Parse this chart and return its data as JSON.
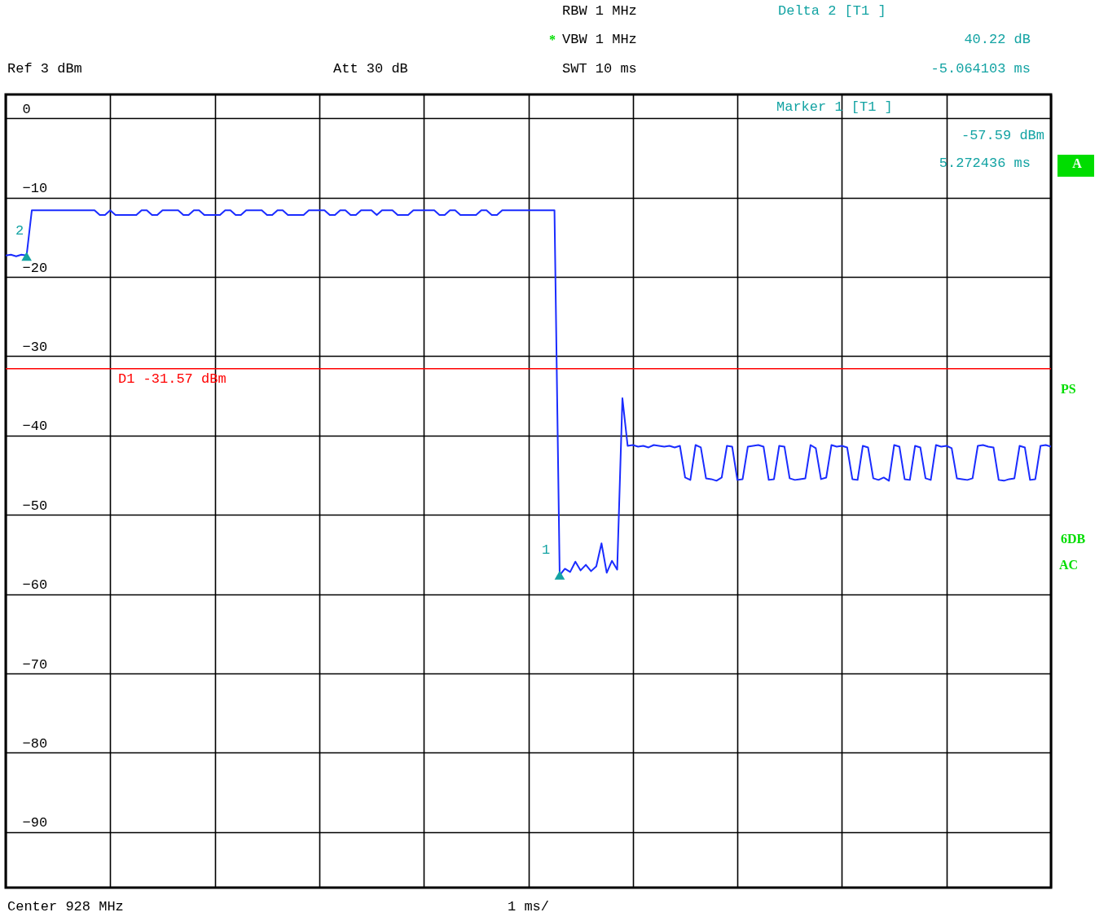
{
  "chart_data": {
    "type": "line",
    "categories": [
      null,
      null,
      null,
      null,
      null,
      null,
      null,
      null,
      null,
      null,
      null,
      null,
      null,
      null,
      null,
      null,
      null,
      null,
      null,
      null,
      null,
      null,
      null,
      null,
      null,
      null,
      null,
      null,
      null,
      null,
      null,
      null,
      null,
      null,
      null,
      null,
      null,
      null,
      null,
      null,
      null,
      null,
      null,
      null,
      null,
      null,
      null,
      null,
      null,
      null,
      null,
      null,
      null,
      null,
      null,
      null,
      null,
      null,
      null,
      null,
      null,
      null,
      null,
      null,
      null,
      null,
      null,
      null,
      null,
      null,
      null,
      null,
      null,
      null,
      null,
      null,
      null,
      null,
      null,
      null,
      null,
      null,
      null,
      null,
      null,
      null,
      null,
      null,
      null,
      null,
      null,
      null,
      null,
      null,
      null,
      null,
      null,
      null,
      null,
      null,
      null,
      null,
      null,
      null,
      null,
      null,
      null,
      null,
      null,
      null,
      null,
      null,
      null,
      null,
      null,
      null,
      null,
      null,
      null,
      null,
      null,
      null,
      null,
      null,
      null,
      null,
      null,
      null,
      null,
      null,
      null,
      null,
      null,
      null,
      null,
      null,
      null,
      null,
      null,
      null,
      null,
      null,
      null,
      null,
      null,
      null,
      null,
      null,
      null,
      null,
      null,
      null,
      null,
      null,
      null,
      null,
      null,
      null,
      null,
      null,
      null,
      null,
      null,
      null,
      null,
      null,
      null,
      null,
      null,
      null,
      null,
      null,
      null,
      null,
      null,
      null,
      null,
      null,
      null,
      null,
      null,
      null,
      null,
      null,
      null,
      null,
      null,
      null,
      null,
      null,
      null,
      null,
      null,
      null,
      null,
      null,
      null,
      null,
      null,
      null,
      null
    ],
    "series": [
      {
        "color": "#1a2cff",
        "values": [
          -17.3,
          -17.2,
          -17.4,
          -17.2,
          -17.3,
          -11.6,
          -11.6,
          -11.6,
          -11.6,
          -11.6,
          -11.6,
          -11.6,
          -11.6,
          -11.6,
          -11.6,
          -11.6,
          -11.6,
          -11.6,
          -12.2,
          -12.2,
          -11.6,
          -12.2,
          -12.2,
          -12.2,
          -12.2,
          -12.2,
          -11.6,
          -11.6,
          -12.2,
          -12.2,
          -11.6,
          -11.6,
          -11.6,
          -11.6,
          -12.2,
          -12.2,
          -11.6,
          -11.6,
          -12.2,
          -12.2,
          -12.2,
          -12.2,
          -11.6,
          -11.6,
          -12.2,
          -12.2,
          -11.6,
          -11.6,
          -11.6,
          -11.6,
          -12.2,
          -12.2,
          -11.6,
          -11.6,
          -12.2,
          -12.2,
          -12.2,
          -12.2,
          -11.6,
          -11.6,
          -11.6,
          -11.6,
          -12.2,
          -12.2,
          -11.6,
          -11.6,
          -12.2,
          -12.2,
          -11.6,
          -11.6,
          -11.6,
          -12.2,
          -11.6,
          -11.6,
          -11.6,
          -12.2,
          -12.2,
          -12.2,
          -11.6,
          -11.6,
          -11.6,
          -11.6,
          -11.6,
          -12.2,
          -12.2,
          -11.6,
          -11.6,
          -12.2,
          -12.2,
          -12.2,
          -12.2,
          -11.6,
          -11.6,
          -12.2,
          -12.2,
          -11.6,
          -11.6,
          -11.6,
          -11.6,
          -11.6,
          -11.6,
          -11.6,
          -11.6,
          -11.6,
          -11.6,
          -11.6,
          -57.6,
          -56.8,
          -57.2,
          -55.9,
          -57.0,
          -56.3,
          -57.1,
          -56.5,
          -53.6,
          -57.3,
          -55.8,
          -56.9,
          -35.3,
          -41.3,
          -41.2,
          -41.4,
          -41.3,
          -41.5,
          -41.2,
          -41.3,
          -41.4,
          -41.3,
          -41.5,
          -41.3,
          -45.3,
          -45.6,
          -41.2,
          -41.5,
          -45.4,
          -45.5,
          -45.7,
          -45.3,
          -41.3,
          -41.4,
          -45.6,
          -45.5,
          -41.4,
          -41.3,
          -41.2,
          -41.4,
          -45.6,
          -45.5,
          -41.3,
          -41.4,
          -45.4,
          -45.6,
          -45.5,
          -45.4,
          -41.2,
          -41.6,
          -45.5,
          -45.3,
          -41.2,
          -41.4,
          -41.3,
          -41.5,
          -45.5,
          -45.6,
          -41.3,
          -41.5,
          -45.4,
          -45.6,
          -45.3,
          -45.7,
          -41.2,
          -41.4,
          -45.5,
          -45.6,
          -41.3,
          -41.5,
          -45.4,
          -45.6,
          -41.2,
          -41.4,
          -41.3,
          -41.6,
          -45.4,
          -45.5,
          -45.6,
          -45.4,
          -41.3,
          -41.2,
          -41.4,
          -41.5,
          -45.6,
          -45.7,
          -45.5,
          -45.4,
          -41.3,
          -41.5,
          -45.6,
          -45.5,
          -41.3,
          -41.2,
          -41.4
        ]
      },
      {
        "type": "scatter",
        "color": "#13a3a3",
        "marker": "triangle",
        "values": [
          null,
          null,
          null,
          null,
          -17.4,
          null,
          null,
          null,
          null,
          null,
          null,
          null,
          null,
          null,
          null,
          null,
          null,
          null,
          null,
          null,
          null,
          null,
          null,
          null,
          null,
          null,
          null,
          null,
          null,
          null,
          null,
          null,
          null,
          null,
          null,
          null,
          null,
          null,
          null,
          null,
          null,
          null,
          null,
          null,
          null,
          null,
          null,
          null,
          null,
          null,
          null,
          null,
          null,
          null,
          null,
          null,
          null,
          null,
          null,
          null,
          null,
          null,
          null,
          null,
          null,
          null,
          null,
          null,
          null,
          null,
          null,
          null,
          null,
          null,
          null,
          null,
          null,
          null,
          null,
          null,
          null,
          null,
          null,
          null,
          null,
          null,
          null,
          null,
          null,
          null,
          null,
          null,
          null,
          null,
          null,
          null,
          null,
          null,
          null,
          null,
          null,
          null,
          null,
          null,
          null,
          null,
          -57.6,
          null,
          null,
          null,
          null,
          null,
          null,
          null,
          null,
          null,
          null,
          null,
          null,
          null,
          null,
          null,
          null,
          null,
          null,
          null,
          null,
          null,
          null,
          null,
          null,
          null,
          null,
          null,
          null,
          null,
          null,
          null,
          null,
          null,
          null,
          null,
          null,
          null,
          null,
          null,
          null,
          null,
          null,
          null,
          null,
          null,
          null,
          null,
          null,
          null,
          null,
          null,
          null,
          null,
          null,
          null,
          null,
          null,
          null,
          null,
          null,
          null,
          null,
          null,
          null,
          null,
          null,
          null,
          null,
          null,
          null,
          null,
          null,
          null,
          null,
          null,
          null,
          null,
          null,
          null,
          null,
          null,
          null,
          null,
          null,
          null,
          null,
          null,
          null,
          null,
          null,
          null,
          null,
          null,
          null
        ]
      }
    ],
    "ylim": [
      -97,
      3
    ],
    "yticks": [
      0,
      -10,
      -20,
      -30,
      -40,
      -50,
      -60,
      -70,
      -80,
      -90
    ],
    "grid": true,
    "tick_labels": "y",
    "line_style": "solid",
    "ref_lines": [
      {
        "axis": "y",
        "value": -31.57,
        "label": "D1 -31.57 dBm",
        "color": "#ff0000"
      }
    ],
    "annotations": [
      "RBW 1 MHz",
      "*",
      "VBW 1 MHz",
      "Ref 3 dBm",
      "Att 30 dB",
      "SWT 10 ms",
      "Delta 2 [T1 ]",
      "40.22 dB",
      "-5.064103 ms",
      "Marker 1 [T1 ]",
      "-57.59 dBm",
      "5.272436 ms",
      "Center 928 MHz",
      "1 ms/",
      "A",
      "PS",
      "6DB",
      "AC",
      "2",
      "1"
    ]
  }
}
